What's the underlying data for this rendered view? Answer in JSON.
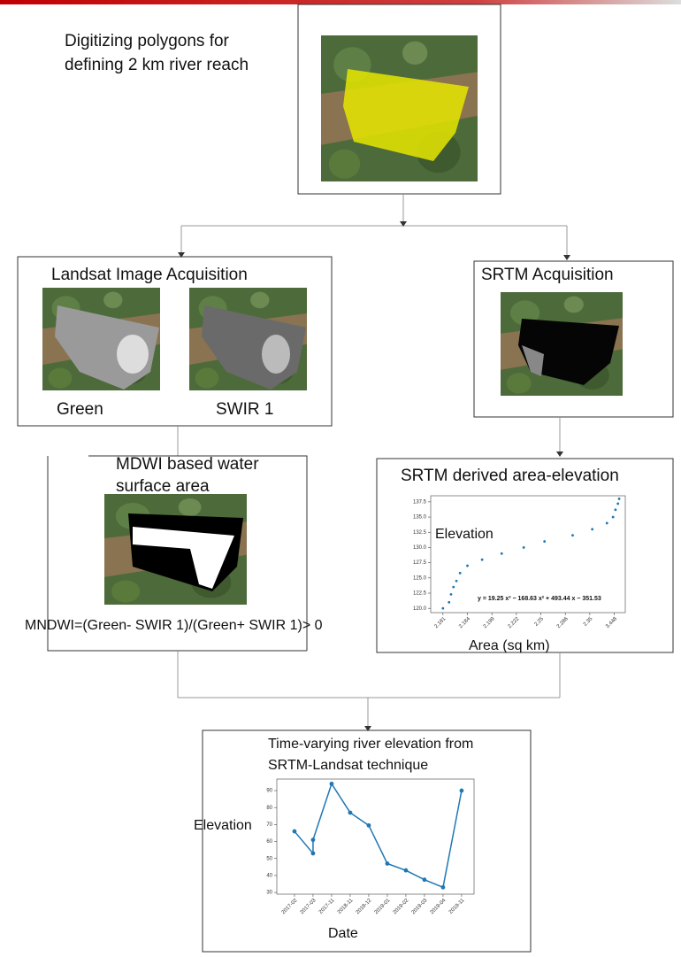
{
  "steps": {
    "digitize": {
      "title": [
        "Digitizing polygons for",
        "defining 2 km river reach"
      ]
    },
    "landsat": {
      "title": "Landsat Image Acquisition",
      "bands": [
        "Green",
        "SWIR 1"
      ]
    },
    "srtm": {
      "title": "SRTM Acquisition"
    },
    "mndwi": {
      "title": [
        "MDWI based water",
        "surface area"
      ],
      "formula": "MNDWI=(Green- SWIR 1)/(Green+ SWIR 1)> 0"
    }
  },
  "chart_data": [
    {
      "type": "scatter",
      "title": "SRTM derived area-elevation",
      "y_label": "Elevation",
      "x_label": "Area (sq km)",
      "annotation": "y = 19.25 x³ − 168.63 x² + 493.44 x − 351.53",
      "color": "#1f77b4",
      "x": [
        0,
        0.25,
        0.33,
        0.43,
        0.55,
        0.7,
        1.0,
        1.6,
        2.4,
        3.3,
        4.15,
        5.3,
        6.1,
        6.7,
        6.95,
        7.05,
        7.15,
        7.2
      ],
      "values": [
        120,
        121,
        122.3,
        123.5,
        124.5,
        125.8,
        127,
        128,
        129,
        130,
        131,
        132,
        133,
        134,
        135,
        136.2,
        137.2,
        138
      ],
      "xlim": [
        -0.5,
        7.45
      ],
      "ylim": [
        119.3,
        138.5
      ],
      "xticks": [
        {
          "value": 0,
          "label": "2.181"
        },
        {
          "value": 1,
          "label": "2.184"
        },
        {
          "value": 2,
          "label": "2.199"
        },
        {
          "value": 3,
          "label": "2.222"
        },
        {
          "value": 4,
          "label": "2.25"
        },
        {
          "value": 5,
          "label": "2.286"
        },
        {
          "value": 6,
          "label": "2.35"
        },
        {
          "value": 7,
          "label": "3.448"
        }
      ],
      "yticks": [
        {
          "value": 120,
          "label": "120.0"
        },
        {
          "value": 122.5,
          "label": "122.5"
        },
        {
          "value": 125,
          "label": "125.0"
        },
        {
          "value": 127.5,
          "label": "127.5"
        },
        {
          "value": 130,
          "label": "130.0"
        },
        {
          "value": 132.5,
          "label": "132.5"
        },
        {
          "value": 135,
          "label": "135.0"
        },
        {
          "value": 137.5,
          "label": "137.5"
        }
      ]
    },
    {
      "type": "line",
      "title": [
        "Time-varying river elevation from",
        "SRTM-Landsat technique"
      ],
      "y_label": "Elevation",
      "x_label": "Date",
      "color": "#1f77b4",
      "x": [
        0,
        1,
        1,
        2,
        3,
        4,
        5,
        6,
        7,
        8,
        9
      ],
      "values": [
        66,
        53,
        61,
        94,
        77,
        69.5,
        47,
        43,
        37.5,
        33,
        90
      ],
      "xlim": [
        -0.95,
        9.67
      ],
      "ylim": [
        29,
        96.8
      ],
      "xticks": [
        {
          "value": 0,
          "label": "2017-02"
        },
        {
          "value": 1,
          "label": "2017-03"
        },
        {
          "value": 2,
          "label": "2017-11"
        },
        {
          "value": 3,
          "label": "2018-11"
        },
        {
          "value": 4,
          "label": "2018-12"
        },
        {
          "value": 5,
          "label": "2019-01"
        },
        {
          "value": 6,
          "label": "2019-02"
        },
        {
          "value": 7,
          "label": "2019-03"
        },
        {
          "value": 8,
          "label": "2019-04"
        },
        {
          "value": 9,
          "label": "2019-11"
        }
      ],
      "yticks": [
        30,
        40,
        50,
        60,
        70,
        80,
        90
      ]
    }
  ]
}
